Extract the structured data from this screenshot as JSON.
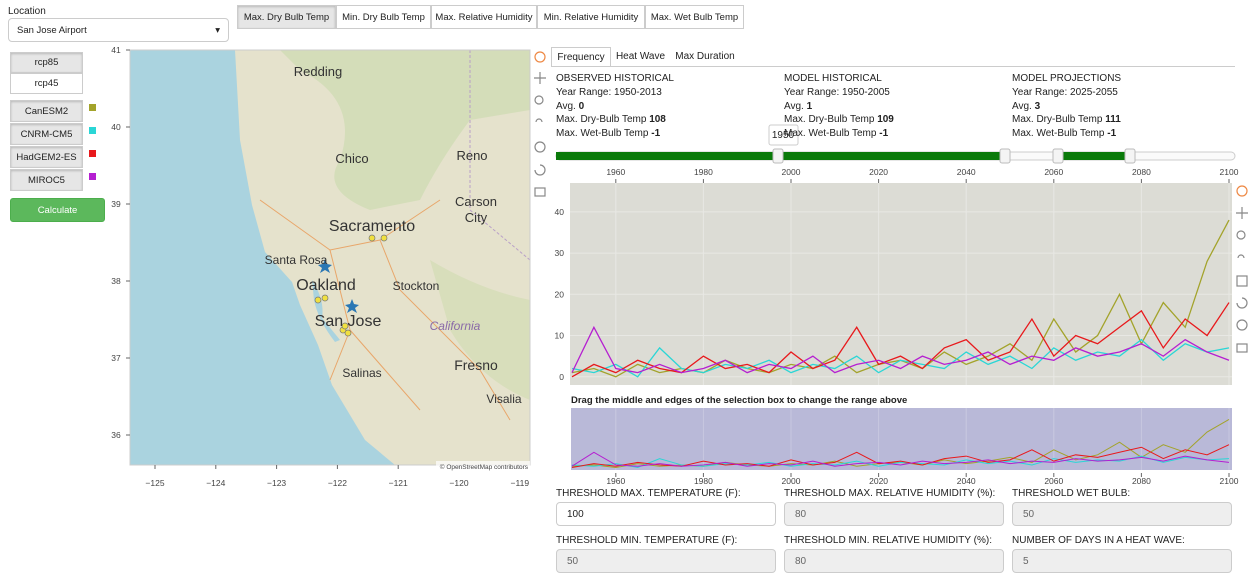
{
  "location": {
    "label": "Location",
    "selected": "San Jose Airport"
  },
  "variable_tabs": [
    "Max. Dry Bulb Temp",
    "Min. Dry Bulb Temp",
    "Max. Relative Humidity",
    "Min. Relative Humidity",
    "Max. Wet Bulb Temp"
  ],
  "scenarios": [
    "rcp85",
    "rcp45"
  ],
  "models": [
    "CanESM2",
    "CNRM-CM5",
    "HadGEM2-ES",
    "MIROC5"
  ],
  "calculate": "Calculate",
  "map": {
    "yticks": [
      36,
      37,
      38,
      39,
      40,
      41
    ],
    "xticks": [
      {
        "value": -125,
        "label": "−125"
      },
      {
        "value": -124,
        "label": "−124"
      },
      {
        "value": -123,
        "label": "−123"
      },
      {
        "value": -122,
        "label": "−122"
      },
      {
        "value": -121,
        "label": "−121"
      },
      {
        "value": -120,
        "label": "−120"
      },
      {
        "value": -119,
        "label": "−119"
      }
    ],
    "places": [
      "Redding",
      "Chico",
      "Reno",
      "Carson",
      "City",
      "Sacramento",
      "Santa Rosa",
      "Oakland",
      "Stockton",
      "San Jose",
      "California",
      "Fresno",
      "Salinas",
      "Visalia"
    ],
    "attribution": "© OpenStreetMap contributors"
  },
  "result_tabs": [
    "Frequency",
    "Heat Wave",
    "Max Duration"
  ],
  "summaries": [
    {
      "title": "OBSERVED HISTORICAL",
      "year_range_label": "Year Range:",
      "year_range": "1950-2013",
      "avg_label": "Avg.",
      "avg": 0,
      "max_dry_label": "Max. Dry-Bulb Temp",
      "max_dry": 108,
      "max_wet_label": "Max. Wet-Bulb Temp",
      "max_wet": -1
    },
    {
      "title": "MODEL HISTORICAL",
      "year_range_label": "Year Range:",
      "year_range": "1950-2005",
      "avg_label": "Avg.",
      "avg": 1,
      "max_dry_label": "Max. Dry-Bulb Temp",
      "max_dry": 109,
      "max_wet_label": "Max. Wet-Bulb Temp",
      "max_wet": -1
    },
    {
      "title": "MODEL PROJECTIONS",
      "year_range_label": "Year Range:",
      "year_range": "2025-2055",
      "avg_label": "Avg.",
      "avg": 3,
      "max_dry_label": "Max. Dry-Bulb Temp",
      "max_dry": 111,
      "max_wet_label": "Max. Wet-Bulb Temp",
      "max_wet": -1
    }
  ],
  "slider_tooltip": 1950,
  "chart_data": {
    "type": "line",
    "x": [
      1950,
      1955,
      1960,
      1965,
      1970,
      1975,
      1980,
      1985,
      1990,
      1995,
      2000,
      2005,
      2010,
      2015,
      2020,
      2025,
      2030,
      2035,
      2040,
      2045,
      2050,
      2055,
      2060,
      2065,
      2070,
      2075,
      2080,
      2085,
      2090,
      2095,
      2100
    ],
    "xlim": [
      1950,
      2100
    ],
    "xticks": [
      1960,
      1980,
      2000,
      2020,
      2040,
      2060,
      2080,
      2100
    ],
    "ylim": [
      -2,
      47
    ],
    "yticks": [
      0,
      10,
      20,
      30,
      40
    ],
    "grid": true,
    "series": [
      {
        "color": "#a3a32b",
        "values": [
          1,
          2,
          0,
          3,
          1,
          2,
          1,
          4,
          2,
          1,
          3,
          2,
          5,
          1,
          3,
          4,
          2,
          6,
          3,
          5,
          8,
          4,
          14,
          6,
          10,
          20,
          8,
          18,
          12,
          28,
          38
        ]
      },
      {
        "color": "#2ad6d6",
        "values": [
          2,
          1,
          3,
          0,
          7,
          2,
          1,
          3,
          2,
          4,
          1,
          3,
          2,
          5,
          1,
          4,
          3,
          2,
          6,
          3,
          5,
          2,
          7,
          4,
          6,
          5,
          9,
          4,
          8,
          6,
          7
        ]
      },
      {
        "color": "#e8191c",
        "values": [
          0,
          3,
          1,
          4,
          2,
          1,
          5,
          2,
          3,
          1,
          6,
          2,
          4,
          12,
          3,
          5,
          2,
          7,
          9,
          4,
          6,
          14,
          5,
          10,
          8,
          12,
          16,
          7,
          14,
          10,
          18
        ]
      },
      {
        "color": "#b51fd1",
        "values": [
          1,
          12,
          2,
          1,
          3,
          1,
          2,
          4,
          1,
          3,
          2,
          5,
          1,
          3,
          4,
          2,
          5,
          3,
          4,
          6,
          3,
          5,
          4,
          7,
          5,
          6,
          8,
          5,
          9,
          6,
          4
        ]
      }
    ]
  },
  "overview_hint": "Drag the middle and edges of the selection box to change the range above",
  "thresholds": [
    {
      "label": "THRESHOLD MAX. TEMPERATURE (F):",
      "value": 100
    },
    {
      "label": "THRESHOLD MAX. RELATIVE HUMIDITY (%):",
      "value": 80
    },
    {
      "label": "THRESHOLD WET BULB:",
      "value": 50
    },
    {
      "label": "THRESHOLD MIN. TEMPERATURE (F):",
      "value": 50
    },
    {
      "label": "THRESHOLD MIN. RELATIVE HUMIDITY (%):",
      "value": 80
    },
    {
      "label": "NUMBER OF DAYS IN A HEAT WAVE:",
      "value": 5
    }
  ]
}
